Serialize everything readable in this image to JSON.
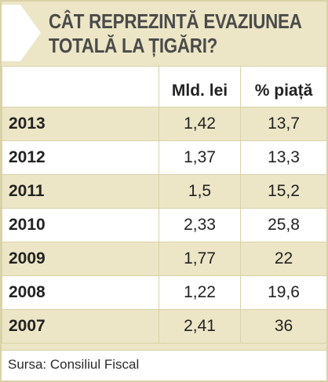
{
  "title_line1": "CÂT REPREZINTĂ EVAZIUNEA",
  "title_line2": "TOTALĂ LA ȚIGĂRI?",
  "columns": [
    "Mld. lei",
    "% piață"
  ],
  "rows": [
    {
      "year": "2013",
      "mld_lei": "1,42",
      "pct_piata": "13,7"
    },
    {
      "year": "2012",
      "mld_lei": "1,37",
      "pct_piata": "13,3"
    },
    {
      "year": "2011",
      "mld_lei": "1,5",
      "pct_piata": "15,2"
    },
    {
      "year": "2010",
      "mld_lei": "2,33",
      "pct_piata": "25,8"
    },
    {
      "year": "2009",
      "mld_lei": "1,77",
      "pct_piata": "22"
    },
    {
      "year": "2008",
      "mld_lei": "1,22",
      "pct_piata": "19,6"
    },
    {
      "year": "2007",
      "mld_lei": "2,41",
      "pct_piata": "36"
    }
  ],
  "source": "Sursa: Consiliul Fiscal",
  "colors": {
    "beige": "#ece6c6",
    "border": "#d9d2a8",
    "arrow": "#ffffff"
  }
}
